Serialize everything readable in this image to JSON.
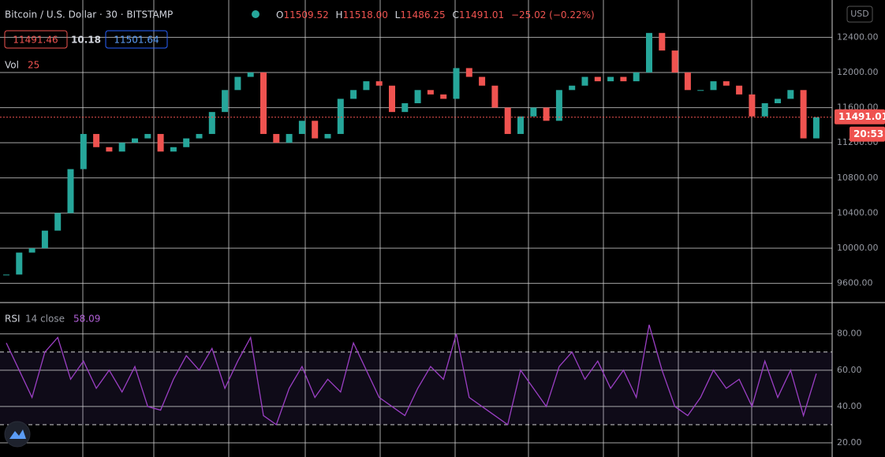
{
  "header": {
    "symbol": "Bitcoin / U.S. Dollar · 30 · BITSTAMP",
    "open_label": "O",
    "open": "11509.52",
    "high_label": "H",
    "high": "11518.00",
    "low_label": "L",
    "low": "11486.25",
    "close_label": "C",
    "close": "11491.01",
    "change": "−25.02 (−0.22%)",
    "bid": "11491.46",
    "spread": "10.18",
    "ask": "11501.64",
    "vol_label": "Vol",
    "vol_value": "25",
    "currency": "USD",
    "price_tag": "11491.01",
    "countdown": "20:53"
  },
  "chart_data": [
    {
      "type": "candlestick",
      "up_color": "#26a69a",
      "down_color": "#ef5350",
      "values": [
        9700,
        9950,
        10000,
        10200,
        10400,
        10900,
        11300,
        11150,
        11100,
        11200,
        11250,
        11300,
        11100,
        11150,
        11250,
        11300,
        11550,
        11800,
        11950,
        12000,
        11300,
        11200,
        11300,
        11450,
        11250,
        11300,
        11700,
        11800,
        11900,
        11850,
        11550,
        11650,
        11800,
        11750,
        11700,
        12050,
        11950,
        11850,
        11600,
        11300,
        11500,
        11600,
        11450,
        11800,
        11850,
        11950,
        11900,
        11950,
        11900,
        12000,
        12450,
        12250,
        12000,
        11800,
        11800,
        11900,
        11850,
        11750,
        11500,
        11650,
        11700,
        11800,
        11250,
        11491.01
      ],
      "ylim": [
        9390,
        12825
      ],
      "yticks": [
        {
          "value": 12400,
          "label": "12400.00"
        },
        {
          "value": 12000,
          "label": "12000.00"
        },
        {
          "value": 11600,
          "label": "11600.00"
        },
        {
          "value": 11200,
          "label": "11200.00"
        },
        {
          "value": 10800,
          "label": "10800.00"
        },
        {
          "value": 10400,
          "label": "10400.00"
        },
        {
          "value": 10000,
          "label": "10000.00"
        },
        {
          "value": 9600,
          "label": "9600.00"
        }
      ],
      "last_price": 11491.01,
      "grid": true
    },
    {
      "type": "line",
      "title": "RSI",
      "subtitle": "14 close",
      "last_label": "58.09",
      "color": "#9b3fc4",
      "values": [
        75,
        60,
        45,
        70,
        78,
        55,
        65,
        50,
        60,
        48,
        62,
        40,
        38,
        55,
        68,
        60,
        72,
        50,
        65,
        78,
        35,
        30,
        50,
        62,
        45,
        55,
        48,
        75,
        60,
        45,
        40,
        35,
        50,
        62,
        55,
        80,
        45,
        40,
        35,
        30,
        60,
        50,
        40,
        62,
        70,
        55,
        65,
        50,
        60,
        45,
        85,
        60,
        40,
        35,
        45,
        60,
        50,
        55,
        40,
        65,
        45,
        60,
        35,
        58.09
      ],
      "ylim": [
        12.2,
        96.8
      ],
      "yticks": [
        {
          "value": 80,
          "label": "80.00"
        },
        {
          "value": 60,
          "label": "60.00"
        },
        {
          "value": 40,
          "label": "40.00"
        },
        {
          "value": 20,
          "label": "20.00"
        }
      ],
      "band": [
        30,
        70
      ],
      "grid": true
    }
  ]
}
